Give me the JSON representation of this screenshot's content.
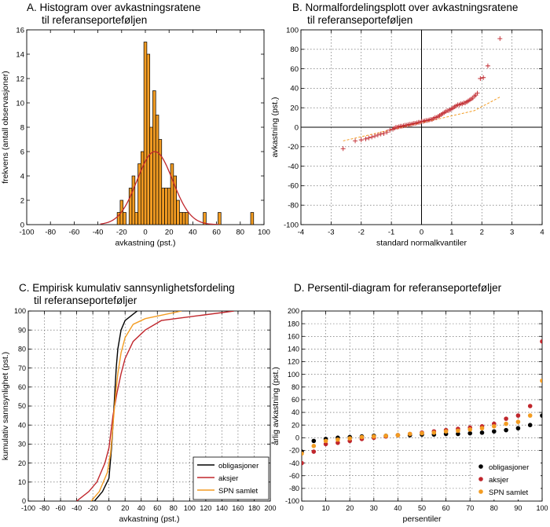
{
  "chart_data": [
    {
      "id": "A",
      "type": "bar",
      "title": "A. Histogram over avkastningsratene",
      "subtitle": "til referanseporteføljen",
      "xlabel": "avkastning (pst.)",
      "ylabel": "frekvens (antall observasjoner)",
      "xlim": [
        -100,
        100
      ],
      "ylim": [
        0,
        16
      ],
      "xticks": [
        "-100",
        "-80",
        "-60",
        "-40",
        "-20",
        "0",
        "20",
        "40",
        "60",
        "80",
        "100"
      ],
      "yticks": [
        "0",
        "2",
        "4",
        "6",
        "8",
        "10",
        "12",
        "14",
        "16"
      ],
      "bar_width": 2.5,
      "bars": [
        {
          "x": -22.5,
          "y": 1
        },
        {
          "x": -20,
          "y": 2
        },
        {
          "x": -17.5,
          "y": 1
        },
        {
          "x": -12.5,
          "y": 3
        },
        {
          "x": -10,
          "y": 4
        },
        {
          "x": -7.5,
          "y": 1
        },
        {
          "x": -5,
          "y": 5
        },
        {
          "x": -2.5,
          "y": 6
        },
        {
          "x": 0,
          "y": 15
        },
        {
          "x": 2.5,
          "y": 14
        },
        {
          "x": 5,
          "y": 8
        },
        {
          "x": 7.5,
          "y": 11
        },
        {
          "x": 10,
          "y": 9
        },
        {
          "x": 12.5,
          "y": 7
        },
        {
          "x": 15,
          "y": 3
        },
        {
          "x": 17.5,
          "y": 3
        },
        {
          "x": 20,
          "y": 3
        },
        {
          "x": 22.5,
          "y": 5
        },
        {
          "x": 25,
          "y": 4
        },
        {
          "x": 27.5,
          "y": 2
        },
        {
          "x": 30,
          "y": 1
        },
        {
          "x": 32.5,
          "y": 1
        },
        {
          "x": 35,
          "y": 1
        },
        {
          "x": 50,
          "y": 1
        },
        {
          "x": 62.5,
          "y": 1
        },
        {
          "x": 90,
          "y": 1
        }
      ],
      "density_curve": {
        "mean": 8,
        "sd": 15,
        "peak": 6,
        "range": [
          -38,
          62
        ]
      },
      "colors": {
        "bar": "#f39c22",
        "bar_edge": "#000000",
        "curve": "#c0262c"
      }
    },
    {
      "id": "B",
      "type": "scatter",
      "title": "B. Normalfordelingsplott over avkastningsratene",
      "subtitle": "til referanseporteføljen",
      "xlabel": "standard normalkvantiler",
      "ylabel": "avkastning (pst.)",
      "xlim": [
        -4,
        4
      ],
      "ylim": [
        -100,
        100
      ],
      "xticks": [
        "-4",
        "-3",
        "-2",
        "-1",
        "0",
        "1",
        "2",
        "3",
        "4"
      ],
      "yticks": [
        "-100",
        "-80",
        "-60",
        "-40",
        "-20",
        "0",
        "20",
        "40",
        "60",
        "80",
        "100"
      ],
      "grid": true,
      "points": [
        [
          -2.6,
          -22
        ],
        [
          -2.2,
          -14
        ],
        [
          -2.0,
          -13
        ],
        [
          -1.85,
          -12
        ],
        [
          -1.75,
          -11
        ],
        [
          -1.65,
          -10
        ],
        [
          -1.55,
          -9
        ],
        [
          -1.45,
          -8
        ],
        [
          -1.35,
          -7
        ],
        [
          -1.25,
          -6.5
        ],
        [
          -1.15,
          -5
        ],
        [
          -1.05,
          -3
        ],
        [
          -0.95,
          -2
        ],
        [
          -0.9,
          -1
        ],
        [
          -0.85,
          0
        ],
        [
          -0.8,
          0
        ],
        [
          -0.75,
          0.5
        ],
        [
          -0.7,
          1
        ],
        [
          -0.65,
          1
        ],
        [
          -0.6,
          1.5
        ],
        [
          -0.55,
          2
        ],
        [
          -0.5,
          2
        ],
        [
          -0.45,
          2.5
        ],
        [
          -0.4,
          3
        ],
        [
          -0.35,
          3
        ],
        [
          -0.3,
          3.5
        ],
        [
          -0.25,
          4
        ],
        [
          -0.2,
          4
        ],
        [
          -0.15,
          4.5
        ],
        [
          -0.1,
          5
        ],
        [
          -0.05,
          5
        ],
        [
          0.0,
          6
        ],
        [
          0.05,
          6
        ],
        [
          0.1,
          6.5
        ],
        [
          0.15,
          7
        ],
        [
          0.2,
          7
        ],
        [
          0.25,
          7.5
        ],
        [
          0.3,
          8
        ],
        [
          0.35,
          8
        ],
        [
          0.4,
          9
        ],
        [
          0.45,
          10
        ],
        [
          0.5,
          10
        ],
        [
          0.55,
          11
        ],
        [
          0.6,
          12
        ],
        [
          0.65,
          13
        ],
        [
          0.7,
          14
        ],
        [
          0.75,
          15
        ],
        [
          0.8,
          16
        ],
        [
          0.85,
          17
        ],
        [
          0.9,
          17
        ],
        [
          0.95,
          18
        ],
        [
          1.0,
          19
        ],
        [
          1.05,
          20
        ],
        [
          1.1,
          21
        ],
        [
          1.15,
          22
        ],
        [
          1.2,
          23
        ],
        [
          1.25,
          23
        ],
        [
          1.3,
          24
        ],
        [
          1.35,
          24
        ],
        [
          1.4,
          25
        ],
        [
          1.45,
          25
        ],
        [
          1.5,
          26
        ],
        [
          1.55,
          27
        ],
        [
          1.6,
          28
        ],
        [
          1.65,
          29
        ],
        [
          1.7,
          30
        ],
        [
          1.75,
          32
        ],
        [
          1.8,
          33
        ],
        [
          1.85,
          35
        ],
        [
          1.95,
          50
        ],
        [
          2.05,
          51
        ],
        [
          2.2,
          63
        ],
        [
          2.6,
          91
        ]
      ],
      "reference_line": [
        [
          -2.6,
          -14
        ],
        [
          1.75,
          17
        ],
        [
          2.6,
          31
        ]
      ],
      "colors": {
        "marker": "#c0262c",
        "reference_line": "#f39c22"
      }
    },
    {
      "id": "C",
      "type": "line",
      "title": "C. Empirisk kumulativ sannsynlighetsfordeling",
      "subtitle": "til referanseporteføljer",
      "xlabel": "avkastning (pst.)",
      "ylabel": "kumulativ sannsynlighet (pst.)",
      "xlim": [
        -100,
        200
      ],
      "ylim": [
        0,
        100
      ],
      "xticks": [
        "-100",
        "-80",
        "-60",
        "-40",
        "-20",
        "0",
        "20",
        "40",
        "60",
        "80",
        "100",
        "120",
        "140",
        "160",
        "180",
        "200"
      ],
      "yticks": [
        "0",
        "10",
        "20",
        "30",
        "40",
        "50",
        "60",
        "70",
        "80",
        "90",
        "100"
      ],
      "grid": true,
      "legend_position": "bottom-right",
      "series": [
        {
          "name": "obligasjoner",
          "color": "#000000",
          "points": [
            [
              -18,
              0
            ],
            [
              -8,
              5
            ],
            [
              0,
              12
            ],
            [
              3,
              27
            ],
            [
              5,
              40
            ],
            [
              7,
              55
            ],
            [
              9,
              70
            ],
            [
              11,
              80
            ],
            [
              15,
              90
            ],
            [
              20,
              95
            ],
            [
              35,
              100
            ]
          ]
        },
        {
          "name": "aksjer",
          "color": "#c0262c",
          "points": [
            [
              -40,
              0
            ],
            [
              -25,
              5
            ],
            [
              -15,
              10
            ],
            [
              -5,
              20
            ],
            [
              0,
              28
            ],
            [
              5,
              45
            ],
            [
              10,
              57
            ],
            [
              15,
              67
            ],
            [
              20,
              75
            ],
            [
              30,
              84
            ],
            [
              45,
              90
            ],
            [
              65,
              95
            ],
            [
              155,
              100
            ]
          ]
        },
        {
          "name": "SPN samlet",
          "color": "#f39c22",
          "points": [
            [
              -22,
              0
            ],
            [
              -12,
              5
            ],
            [
              -2,
              15
            ],
            [
              2,
              25
            ],
            [
              5,
              40
            ],
            [
              8,
              55
            ],
            [
              11,
              67
            ],
            [
              15,
              78
            ],
            [
              20,
              86
            ],
            [
              30,
              93
            ],
            [
              45,
              96
            ],
            [
              90,
              100
            ]
          ]
        }
      ]
    },
    {
      "id": "D",
      "type": "scatter",
      "title": "D.  Persentil-diagram for referanseporteføljer",
      "xlabel": "persentiler",
      "ylabel": "årlig avkastning (pst.)",
      "xlim": [
        0,
        100
      ],
      "ylim": [
        -100,
        200
      ],
      "xticks": [
        "0",
        "10",
        "20",
        "30",
        "40",
        "50",
        "60",
        "70",
        "80",
        "90",
        "100"
      ],
      "yticks": [
        "-100",
        "-80",
        "-60",
        "-40",
        "-20",
        "0",
        "20",
        "40",
        "60",
        "80",
        "100",
        "120",
        "140",
        "160",
        "180",
        "200"
      ],
      "grid": true,
      "legend_position": "bottom-right",
      "x": [
        0,
        5,
        10,
        15,
        20,
        25,
        30,
        35,
        40,
        45,
        50,
        55,
        60,
        65,
        70,
        75,
        80,
        85,
        90,
        95,
        100
      ],
      "series": [
        {
          "name": "obligasjoner",
          "color": "#000000",
          "values": [
            -22,
            -5,
            -2,
            0,
            1,
            2,
            3,
            3,
            4,
            4,
            5,
            5,
            6,
            6,
            7,
            8,
            10,
            12,
            15,
            20,
            35
          ]
        },
        {
          "name": "aksjer",
          "color": "#c0262c",
          "values": [
            -40,
            -22,
            -10,
            -8,
            -5,
            -2,
            0,
            2,
            4,
            6,
            8,
            10,
            12,
            14,
            16,
            18,
            22,
            30,
            35,
            50,
            152
          ]
        },
        {
          "name": "SPN samlet",
          "color": "#f39c22",
          "values": [
            -25,
            -13,
            -5,
            -3,
            -1,
            1,
            2,
            3,
            4,
            6,
            7,
            8,
            10,
            11,
            13,
            15,
            18,
            22,
            25,
            35,
            90
          ]
        }
      ]
    }
  ]
}
